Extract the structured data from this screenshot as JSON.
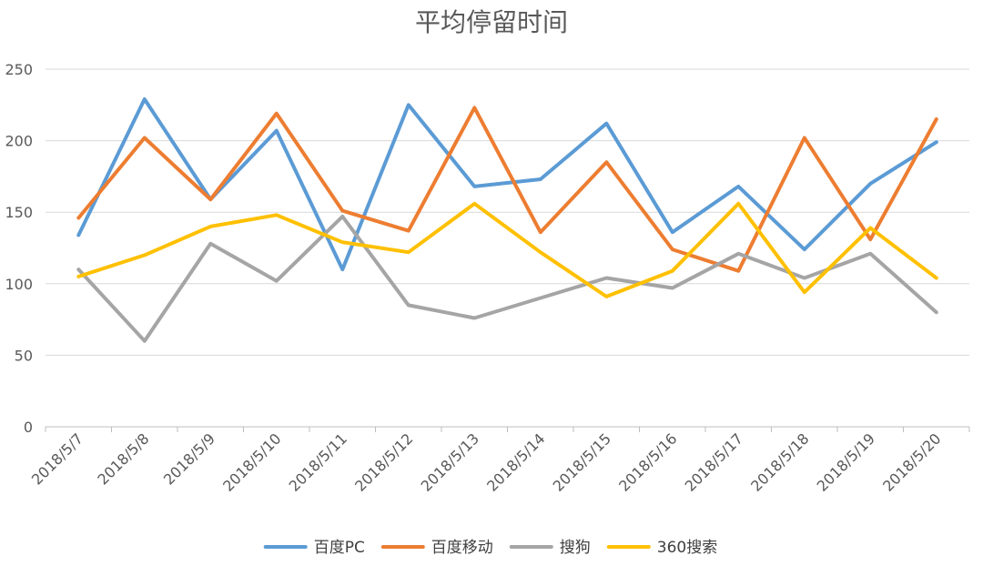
{
  "chart_data": {
    "type": "line",
    "title": "平均停留时间",
    "xlabel": "",
    "ylabel": "",
    "ylim": [
      0,
      250
    ],
    "yticks": [
      0,
      50,
      100,
      150,
      200,
      250
    ],
    "grid": true,
    "legend": "bottom",
    "categories": [
      "2018/5/7",
      "2018/5/8",
      "2018/5/9",
      "2018/5/10",
      "2018/5/11",
      "2018/5/12",
      "2018/5/13",
      "2018/5/14",
      "2018/5/15",
      "2018/5/16",
      "2018/5/17",
      "2018/5/18",
      "2018/5/19",
      "2018/5/20"
    ],
    "series": [
      {
        "name": "百度PC",
        "color": "#5B9BD5",
        "values": [
          134,
          229,
          159,
          207,
          110,
          225,
          168,
          173,
          212,
          136,
          168,
          124,
          170,
          199
        ]
      },
      {
        "name": "百度移动",
        "color": "#ED7D31",
        "values": [
          146,
          202,
          159,
          219,
          151,
          137,
          223,
          136,
          185,
          124,
          109,
          202,
          131,
          215
        ]
      },
      {
        "name": "搜狗",
        "color": "#A5A5A5",
        "values": [
          110,
          60,
          128,
          102,
          147,
          85,
          76,
          90,
          104,
          97,
          121,
          104,
          121,
          80
        ]
      },
      {
        "name": "360搜索",
        "color": "#FFC000",
        "values": [
          105,
          120,
          140,
          148,
          129,
          122,
          156,
          122,
          91,
          109,
          156,
          94,
          139,
          104
        ]
      }
    ]
  }
}
